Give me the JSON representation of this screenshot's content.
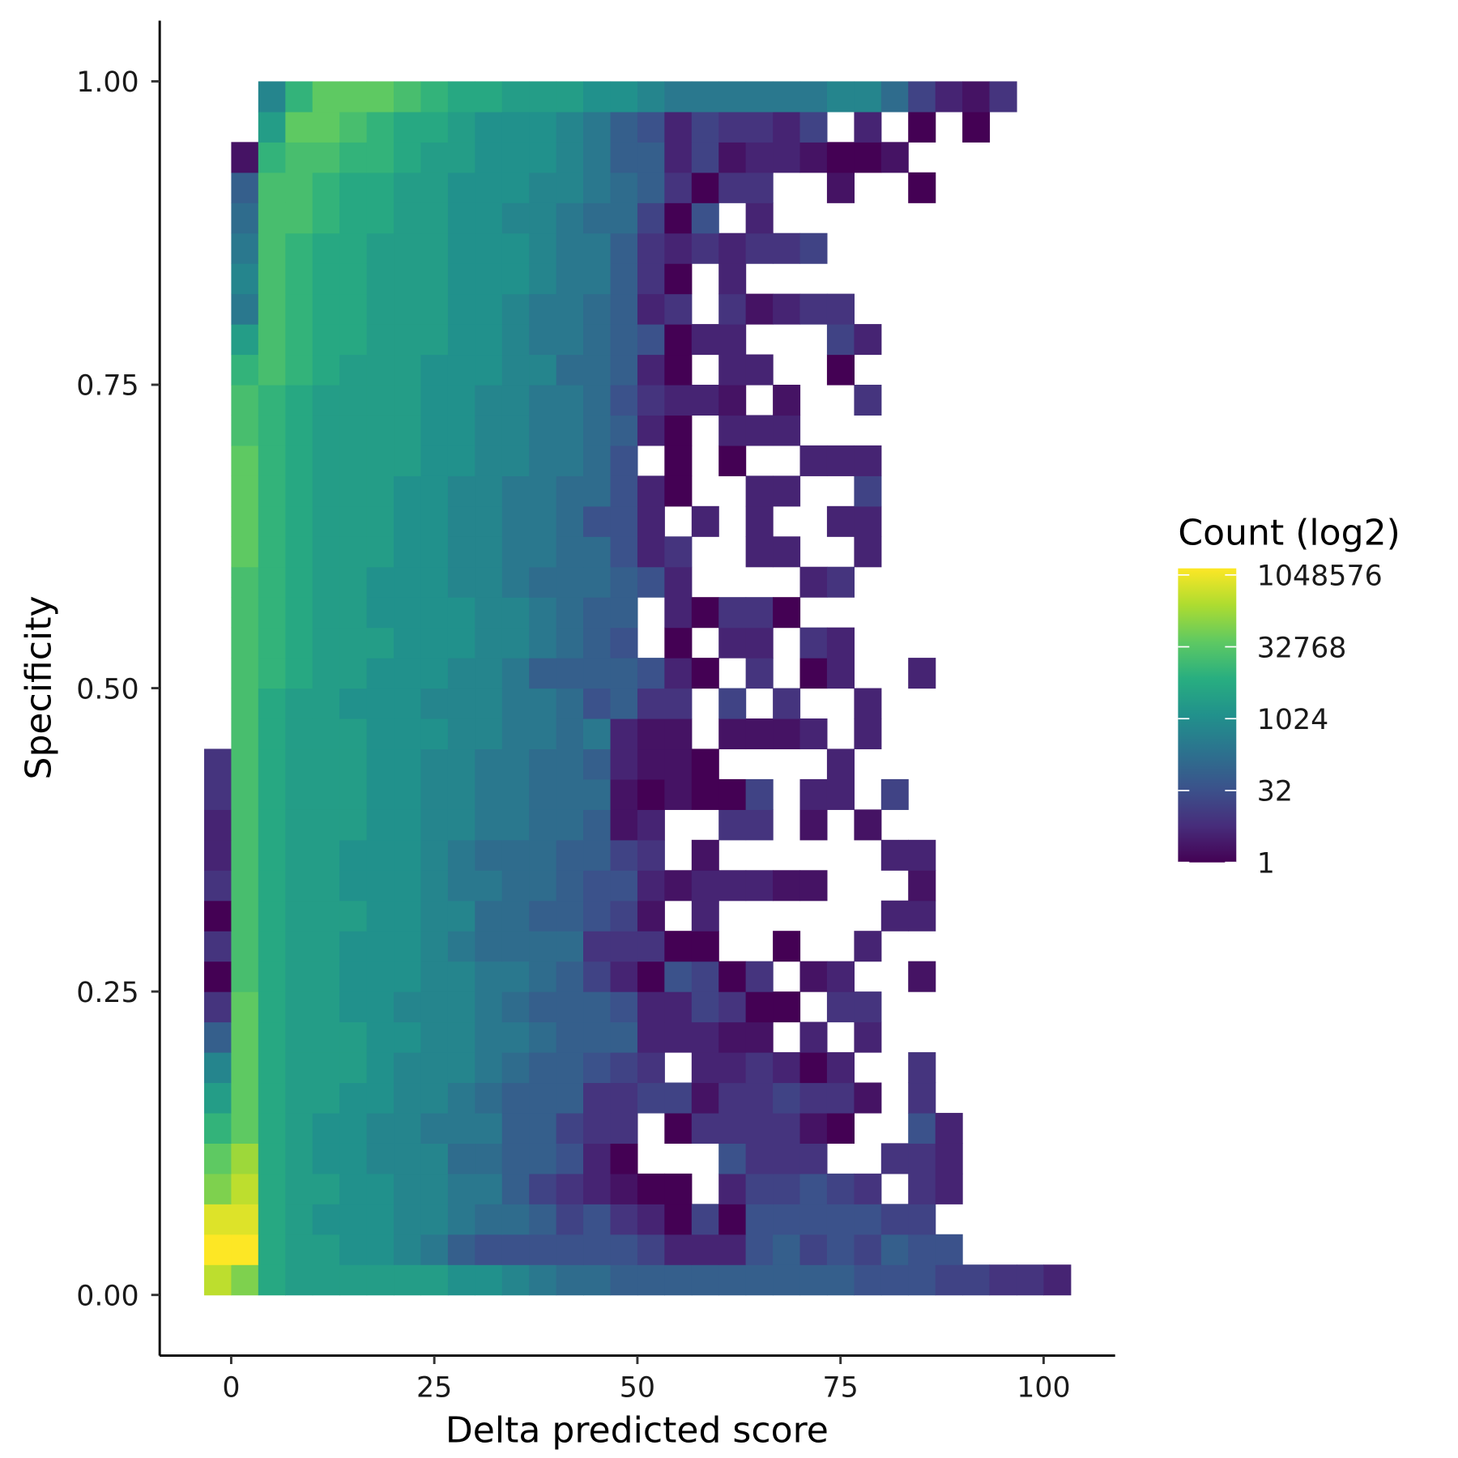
{
  "chart_data": {
    "type": "heatmap",
    "x_label": "Delta predicted score",
    "y_label": "Specificity",
    "xlim": [
      -8.8,
      108.8
    ],
    "ylim": [
      -0.05,
      1.05
    ],
    "xticks": [
      0,
      25,
      50,
      75,
      100
    ],
    "yticks": [
      {
        "value": 0,
        "label": "0.00"
      },
      {
        "value": 0.25,
        "label": "0.25"
      },
      {
        "value": 0.5,
        "label": "0.50"
      },
      {
        "value": 0.75,
        "label": "0.75"
      },
      {
        "value": 1,
        "label": "1.00"
      }
    ],
    "x_bins": [
      -3.33,
      0,
      3.33,
      6.67,
      10,
      13.33,
      16.67,
      20,
      23.33,
      26.67,
      30,
      33.33,
      36.67,
      40,
      43.33,
      46.67,
      50,
      53.33,
      56.67,
      60,
      63.33,
      66.67,
      70,
      73.33,
      76.67,
      80,
      83.33,
      86.67,
      90,
      93.33,
      96.67,
      100,
      103.33
    ],
    "y_bins": [
      0,
      0.025,
      0.05,
      0.075,
      0.1,
      0.125,
      0.15,
      0.175,
      0.2,
      0.225,
      0.25,
      0.275,
      0.3,
      0.325,
      0.35,
      0.375,
      0.4,
      0.425,
      0.45,
      0.475,
      0.5,
      0.525,
      0.55,
      0.575,
      0.6,
      0.625,
      0.65,
      0.675,
      0.7,
      0.725,
      0.75,
      0.775,
      0.8,
      0.825,
      0.85,
      0.875,
      0.9,
      0.925,
      0.95,
      0.975,
      1
    ],
    "values": [
      [
        262144,
        65536,
        4096,
        2048,
        2048,
        2048,
        2048,
        2048,
        2048,
        1024,
        1024,
        512,
        256,
        128,
        128,
        64,
        64,
        64,
        64,
        64,
        64,
        64,
        64,
        64,
        32,
        32,
        32,
        16,
        16,
        8,
        8,
        4
      ],
      [
        1048576,
        1048576,
        4096,
        2048,
        2048,
        1024,
        1024,
        512,
        256,
        64,
        32,
        32,
        32,
        32,
        32,
        32,
        16,
        4,
        4,
        4,
        32,
        64,
        16,
        32,
        16,
        64,
        32,
        32,
        null,
        null,
        null,
        null
      ],
      [
        524288,
        524288,
        4096,
        2048,
        1024,
        1024,
        1024,
        512,
        512,
        256,
        128,
        128,
        64,
        16,
        32,
        8,
        4,
        1,
        16,
        1,
        32,
        32,
        32,
        32,
        32,
        16,
        16,
        null,
        null,
        null,
        null,
        null
      ],
      [
        65536,
        262144,
        4096,
        2048,
        2048,
        1024,
        1024,
        512,
        512,
        256,
        256,
        64,
        16,
        8,
        4,
        2,
        1,
        1,
        null,
        4,
        16,
        16,
        32,
        16,
        8,
        null,
        8,
        4,
        null,
        null,
        null,
        null
      ],
      [
        32768,
        131072,
        4096,
        2048,
        1024,
        1024,
        512,
        512,
        512,
        128,
        128,
        64,
        64,
        32,
        4,
        1,
        null,
        null,
        null,
        32,
        8,
        8,
        8,
        null,
        null,
        8,
        8,
        4,
        null,
        null,
        null,
        null
      ],
      [
        8192,
        32768,
        4096,
        2048,
        1024,
        1024,
        512,
        512,
        256,
        256,
        256,
        64,
        64,
        16,
        8,
        8,
        null,
        1,
        8,
        8,
        8,
        8,
        2,
        1,
        null,
        null,
        32,
        4,
        null,
        null,
        null,
        null
      ],
      [
        2048,
        32768,
        4096,
        2048,
        2048,
        1024,
        1024,
        512,
        512,
        256,
        128,
        64,
        64,
        64,
        8,
        8,
        16,
        16,
        2,
        8,
        8,
        16,
        8,
        8,
        2,
        null,
        8,
        null,
        null,
        null,
        null,
        null
      ],
      [
        512,
        32768,
        4096,
        2048,
        2048,
        2048,
        1024,
        512,
        512,
        512,
        256,
        128,
        64,
        64,
        32,
        16,
        8,
        null,
        4,
        4,
        8,
        4,
        1,
        4,
        null,
        null,
        8,
        null,
        null,
        null,
        null,
        null
      ],
      [
        64,
        32768,
        4096,
        2048,
        2048,
        2048,
        1024,
        1024,
        512,
        512,
        256,
        256,
        128,
        64,
        64,
        64,
        4,
        4,
        4,
        2,
        2,
        null,
        4,
        null,
        4,
        null,
        null,
        null,
        null,
        null,
        null,
        null
      ],
      [
        8,
        32768,
        4096,
        2048,
        2048,
        1024,
        1024,
        512,
        512,
        512,
        256,
        128,
        64,
        64,
        64,
        32,
        4,
        4,
        16,
        8,
        1,
        1,
        null,
        8,
        8,
        null,
        null,
        null,
        null,
        null,
        null,
        null
      ],
      [
        1,
        16384,
        4096,
        2048,
        2048,
        1024,
        1024,
        1024,
        512,
        512,
        256,
        256,
        128,
        64,
        16,
        4,
        1,
        32,
        16,
        1,
        8,
        null,
        2,
        4,
        null,
        null,
        2,
        null,
        null,
        null,
        null,
        null
      ],
      [
        8,
        16384,
        4096,
        2048,
        2048,
        1024,
        1024,
        1024,
        512,
        256,
        128,
        128,
        128,
        128,
        8,
        8,
        8,
        1,
        1,
        null,
        null,
        1,
        null,
        null,
        4,
        null,
        null,
        null,
        null,
        null,
        null,
        null
      ],
      [
        1,
        16384,
        4096,
        2048,
        2048,
        2048,
        1024,
        1024,
        512,
        512,
        128,
        128,
        64,
        64,
        32,
        16,
        2,
        null,
        4,
        null,
        null,
        null,
        null,
        null,
        null,
        4,
        4,
        null,
        null,
        null,
        null,
        null
      ],
      [
        8,
        16384,
        4096,
        2048,
        2048,
        1024,
        1024,
        1024,
        512,
        256,
        256,
        128,
        128,
        64,
        32,
        32,
        4,
        2,
        4,
        4,
        4,
        2,
        2,
        null,
        null,
        null,
        2,
        null,
        null,
        null,
        null,
        null
      ],
      [
        4,
        16384,
        4096,
        2048,
        2048,
        1024,
        1024,
        1024,
        512,
        256,
        128,
        128,
        128,
        64,
        64,
        16,
        8,
        null,
        2,
        null,
        null,
        null,
        null,
        null,
        null,
        4,
        4,
        null,
        null,
        null,
        null,
        null
      ],
      [
        4,
        16384,
        4096,
        2048,
        2048,
        2048,
        1024,
        1024,
        512,
        512,
        256,
        256,
        128,
        128,
        64,
        2,
        4,
        null,
        null,
        8,
        8,
        null,
        2,
        null,
        2,
        null,
        null,
        null,
        null,
        null,
        null,
        null
      ],
      [
        8,
        16384,
        4096,
        2048,
        2048,
        2048,
        1024,
        1024,
        512,
        512,
        256,
        256,
        128,
        128,
        128,
        2,
        1,
        2,
        1,
        1,
        16,
        null,
        4,
        4,
        null,
        16,
        null,
        null,
        null,
        null,
        null,
        null
      ],
      [
        8,
        16384,
        4096,
        2048,
        2048,
        2048,
        1024,
        1024,
        512,
        512,
        256,
        256,
        128,
        128,
        64,
        4,
        2,
        2,
        1,
        null,
        null,
        null,
        null,
        4,
        null,
        null,
        null,
        null,
        null,
        null,
        null,
        null
      ],
      [
        null,
        16384,
        4096,
        2048,
        2048,
        2048,
        1024,
        1024,
        1024,
        512,
        512,
        256,
        256,
        128,
        256,
        4,
        2,
        2,
        null,
        2,
        2,
        2,
        4,
        null,
        4,
        null,
        null,
        null,
        null,
        null,
        null,
        null
      ],
      [
        null,
        16384,
        4096,
        2048,
        2048,
        1024,
        1024,
        1024,
        512,
        512,
        512,
        256,
        256,
        128,
        32,
        64,
        8,
        8,
        null,
        16,
        null,
        8,
        null,
        null,
        4,
        null,
        null,
        null,
        null,
        null,
        null,
        null
      ],
      [
        null,
        16384,
        8192,
        4096,
        2048,
        2048,
        1024,
        1024,
        1024,
        512,
        512,
        256,
        64,
        64,
        64,
        64,
        32,
        4,
        1,
        null,
        8,
        null,
        1,
        4,
        null,
        null,
        4,
        null,
        null,
        null,
        null,
        null
      ],
      [
        null,
        16384,
        8192,
        4096,
        2048,
        2048,
        2048,
        1024,
        1024,
        1024,
        512,
        512,
        256,
        128,
        64,
        32,
        null,
        1,
        null,
        4,
        4,
        null,
        8,
        4,
        null,
        null,
        null,
        null,
        null,
        null,
        null,
        null
      ],
      [
        null,
        16384,
        8192,
        4096,
        2048,
        2048,
        1024,
        1024,
        1024,
        1024,
        512,
        512,
        256,
        128,
        64,
        64,
        null,
        4,
        1,
        8,
        8,
        1,
        null,
        null,
        null,
        null,
        null,
        null,
        null,
        null,
        null,
        null
      ],
      [
        null,
        16384,
        8192,
        4096,
        2048,
        2048,
        1024,
        1024,
        1024,
        512,
        512,
        256,
        128,
        128,
        128,
        64,
        32,
        4,
        null,
        null,
        null,
        null,
        4,
        8,
        null,
        null,
        null,
        null,
        null,
        null,
        null,
        null
      ],
      [
        null,
        32768,
        8192,
        4096,
        2048,
        2048,
        2048,
        1024,
        1024,
        512,
        512,
        256,
        256,
        128,
        128,
        32,
        4,
        8,
        null,
        null,
        4,
        4,
        null,
        null,
        4,
        null,
        null,
        null,
        null,
        null,
        null,
        null
      ],
      [
        null,
        32768,
        8192,
        4096,
        2048,
        2048,
        2048,
        1024,
        1024,
        512,
        512,
        256,
        256,
        128,
        32,
        32,
        4,
        null,
        4,
        null,
        4,
        null,
        null,
        4,
        4,
        null,
        null,
        null,
        null,
        null,
        null,
        null
      ],
      [
        null,
        32768,
        8192,
        4096,
        2048,
        2048,
        2048,
        1024,
        1024,
        512,
        512,
        256,
        256,
        128,
        128,
        32,
        4,
        1,
        null,
        null,
        4,
        4,
        null,
        null,
        16,
        null,
        null,
        null,
        null,
        null,
        null,
        null
      ],
      [
        null,
        32768,
        8192,
        4096,
        2048,
        2048,
        2048,
        2048,
        1024,
        1024,
        512,
        512,
        256,
        256,
        128,
        32,
        null,
        1,
        null,
        1,
        null,
        null,
        4,
        4,
        4,
        null,
        null,
        null,
        null,
        null,
        null,
        null
      ],
      [
        null,
        16384,
        8192,
        4096,
        2048,
        2048,
        2048,
        2048,
        1024,
        1024,
        512,
        512,
        256,
        256,
        128,
        64,
        4,
        1,
        null,
        4,
        4,
        4,
        null,
        null,
        null,
        null,
        null,
        null,
        null,
        null,
        null,
        null
      ],
      [
        null,
        16384,
        8192,
        4096,
        2048,
        2048,
        2048,
        2048,
        1024,
        1024,
        512,
        512,
        256,
        256,
        128,
        32,
        8,
        4,
        4,
        2,
        null,
        2,
        null,
        null,
        8,
        null,
        null,
        null,
        null,
        null,
        null,
        null
      ],
      [
        null,
        8192,
        16384,
        8192,
        4096,
        2048,
        2048,
        2048,
        1024,
        1024,
        1024,
        512,
        512,
        128,
        128,
        64,
        4,
        1,
        null,
        4,
        4,
        null,
        null,
        1,
        null,
        null,
        null,
        null,
        null,
        null,
        null,
        null
      ],
      [
        null,
        2048,
        16384,
        8192,
        4096,
        4096,
        2048,
        2048,
        2048,
        1024,
        1024,
        512,
        256,
        256,
        128,
        64,
        32,
        1,
        4,
        4,
        null,
        null,
        null,
        16,
        4,
        null,
        null,
        null,
        null,
        null,
        null,
        null
      ],
      [
        null,
        256,
        16384,
        8192,
        4096,
        4096,
        2048,
        2048,
        2048,
        1024,
        1024,
        512,
        256,
        256,
        128,
        64,
        4,
        8,
        null,
        8,
        2,
        4,
        8,
        8,
        null,
        null,
        null,
        null,
        null,
        null,
        null,
        null
      ],
      [
        null,
        512,
        16384,
        8192,
        4096,
        4096,
        2048,
        2048,
        2048,
        1024,
        1024,
        1024,
        512,
        256,
        256,
        64,
        8,
        1,
        null,
        4,
        null,
        null,
        null,
        null,
        null,
        null,
        null,
        null,
        null,
        null,
        null,
        null
      ],
      [
        null,
        256,
        16384,
        8192,
        4096,
        4096,
        2048,
        2048,
        2048,
        1024,
        1024,
        1024,
        512,
        256,
        256,
        64,
        8,
        4,
        8,
        4,
        8,
        8,
        16,
        null,
        null,
        null,
        null,
        null,
        null,
        null,
        null,
        null
      ],
      [
        null,
        128,
        16384,
        16384,
        8192,
        4096,
        4096,
        2048,
        2048,
        1024,
        1024,
        512,
        512,
        256,
        128,
        128,
        16,
        1,
        32,
        null,
        4,
        null,
        null,
        null,
        null,
        null,
        null,
        null,
        null,
        null,
        null,
        null
      ],
      [
        null,
        64,
        16384,
        16384,
        8192,
        4096,
        4096,
        2048,
        2048,
        1024,
        1024,
        1024,
        512,
        512,
        256,
        128,
        64,
        8,
        1,
        8,
        8,
        null,
        null,
        2,
        null,
        null,
        1,
        null,
        null,
        null,
        null,
        null
      ],
      [
        null,
        2,
        8192,
        16384,
        16384,
        8192,
        8192,
        4096,
        2048,
        2048,
        1024,
        1024,
        1024,
        512,
        256,
        64,
        64,
        4,
        16,
        2,
        4,
        4,
        2,
        1,
        1,
        2,
        null,
        null,
        null,
        null,
        null,
        null
      ],
      [
        null,
        null,
        2048,
        32768,
        32768,
        16384,
        8192,
        4096,
        4096,
        2048,
        1024,
        1024,
        1024,
        512,
        256,
        64,
        32,
        4,
        16,
        8,
        8,
        4,
        16,
        null,
        4,
        null,
        1,
        null,
        1,
        null,
        null,
        null
      ],
      [
        null,
        null,
        512,
        8192,
        32768,
        32768,
        32768,
        16384,
        8192,
        4096,
        4096,
        2048,
        2048,
        2048,
        1024,
        1024,
        512,
        256,
        256,
        256,
        256,
        256,
        256,
        512,
        512,
        128,
        16,
        4,
        2,
        8,
        null,
        null
      ]
    ],
    "colorbar": {
      "title": "Count (log2)",
      "log_base": 2,
      "lim": [
        1,
        1048576
      ],
      "ticks": [
        1,
        32,
        1024,
        32768,
        1048576
      ],
      "colors": [
        "#440154",
        "#472d7b",
        "#3b528b",
        "#2c728e",
        "#21918c",
        "#28ae80",
        "#5ec962",
        "#addc30",
        "#fde725"
      ]
    }
  }
}
